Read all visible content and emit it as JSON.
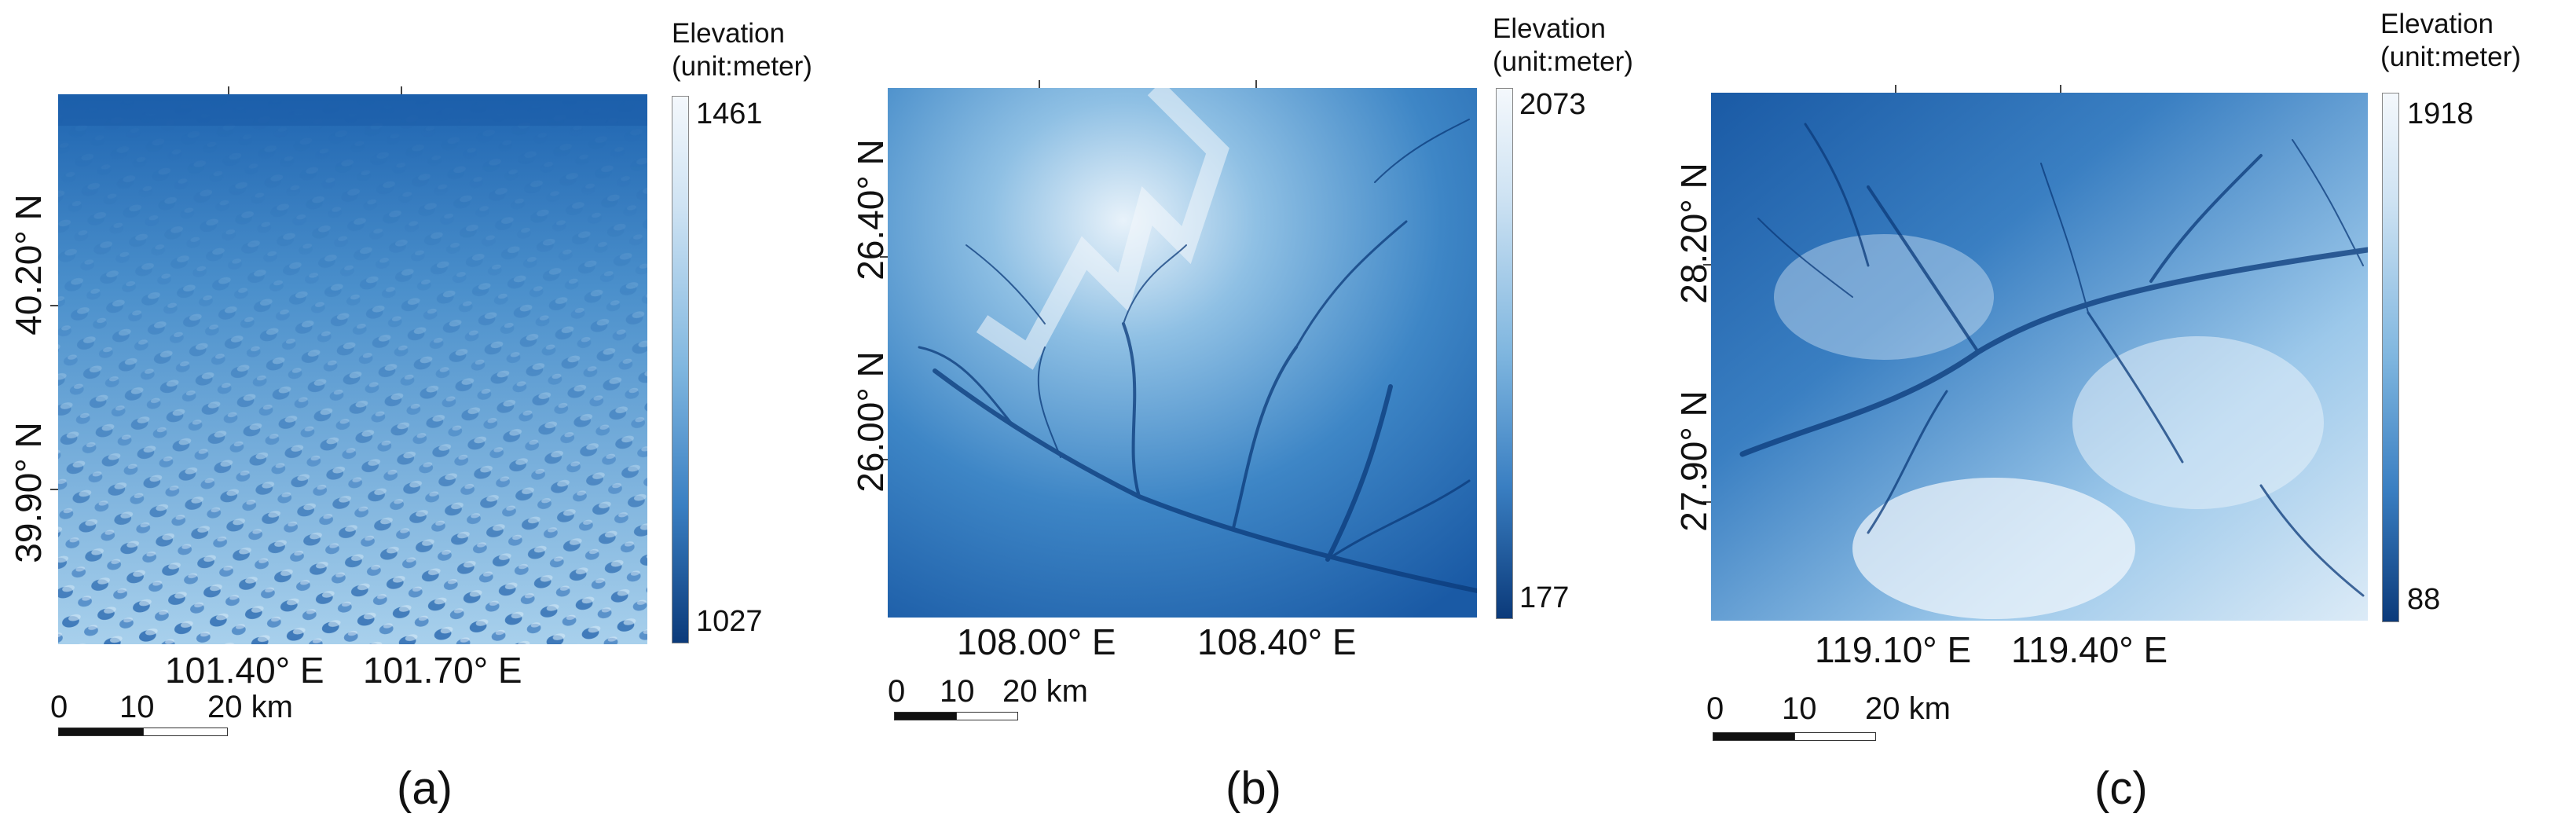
{
  "colors": {
    "low": "#0b3a7a",
    "mid": "#4a8fcb",
    "high": "#f4f8fc"
  },
  "panels": [
    {
      "id": "a",
      "caption": "(a)",
      "colorbar": {
        "title": "Elevation\n(unit:meter)",
        "max": "1461",
        "min": "1027"
      },
      "lat_labels": [
        "40.20° N",
        "39.90° N"
      ],
      "lon_labels": [
        "101.40° E",
        "101.70° E"
      ],
      "scale": {
        "labels": [
          "0",
          "10",
          "20 km"
        ]
      },
      "terrain": "dune-field"
    },
    {
      "id": "b",
      "caption": "(b)",
      "colorbar": {
        "title": "Elevation\n(unit:meter)",
        "max": "2073",
        "min": "177"
      },
      "lat_labels": [
        "26.40° N",
        "26.00° N"
      ],
      "lon_labels": [
        "108.00° E",
        "108.40° E"
      ],
      "scale": {
        "labels": [
          "0",
          "10",
          "20 km"
        ]
      },
      "terrain": "dendritic-valleys"
    },
    {
      "id": "c",
      "caption": "(c)",
      "colorbar": {
        "title": "Elevation\n(unit:meter)",
        "max": "1918",
        "min": "88"
      },
      "lat_labels": [
        "28.20° N",
        "27.90° N"
      ],
      "lon_labels": [
        "119.10° E",
        "119.40° E"
      ],
      "scale": {
        "labels": [
          "0",
          "10",
          "20 km"
        ]
      },
      "terrain": "dendritic-valleys"
    }
  ]
}
